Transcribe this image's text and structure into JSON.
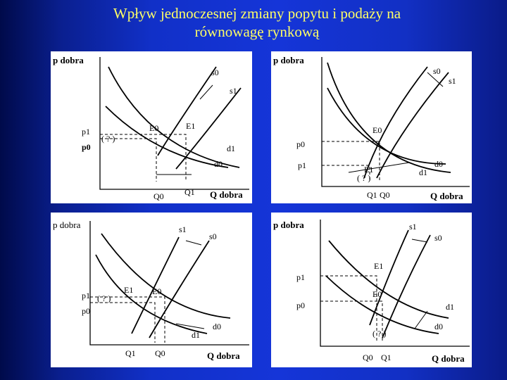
{
  "title": {
    "line1": "Wpływ jednoczesnej zmiany popytu i podaży na",
    "line2": "równowagę rynkową"
  },
  "panels": [
    {
      "y_axis": "p dobra",
      "x_axis": "Q dobra",
      "s0": "s0",
      "s1": "s1",
      "d0": "d0",
      "d1": "d1",
      "e0": "E0",
      "e1": "E1",
      "p1": "p1",
      "p0": "p0",
      "q_mark": "( ? )",
      "q0": "Q0",
      "q1": "Q1"
    },
    {
      "y_axis": "p dobra",
      "x_axis": "Q dobra",
      "s0": "s0",
      "s1": "s1",
      "d0": "d0",
      "d1": "d1",
      "e0": "E0",
      "e1": "E1",
      "p0": "p0",
      "p1": "p1",
      "q_mark": "( ? )",
      "q1": "Q1",
      "q0": "Q0"
    },
    {
      "y_axis": "p dobra",
      "x_axis": "Q dobra",
      "s1": "s1",
      "s0": "s0",
      "d0": "d0",
      "d1": "d1",
      "e1": "E1",
      "e0": "E0",
      "p1": "p1",
      "p0": "p0",
      "q_mark": "( ? )",
      "q1": "Q1",
      "q0": "Q0"
    },
    {
      "y_axis": "p dobra",
      "x_axis": "Q dobra",
      "s1": "s1",
      "s0": "s0",
      "d1": "d1",
      "d0": "d0",
      "e1": "E1",
      "e0": "E0",
      "p1": "p1",
      "p0": "p0",
      "q_mark": "( ? )",
      "q0": "Q0",
      "q1": "Q1"
    }
  ]
}
